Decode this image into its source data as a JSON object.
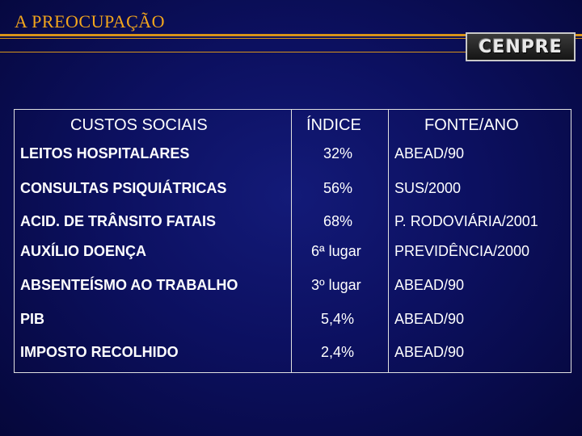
{
  "slide": {
    "title": "A PREOCUPAÇÃO",
    "logo_text": "CENPRE"
  },
  "table": {
    "headers": [
      "CUSTOS SOCIAIS",
      "ÍNDICE",
      "FONTE/ANO"
    ],
    "rows": [
      [
        "LEITOS HOSPITALARES",
        "32%",
        "ABEAD/90"
      ],
      [
        "CONSULTAS PSIQUIÁTRICAS",
        "56%",
        "SUS/2000"
      ],
      [
        "ACID. DE TRÂNSITO FATAIS",
        "68%",
        "P. RODOVIÁRIA/2001"
      ],
      [
        "AUXÍLIO DOENÇA",
        "6ª lugar",
        "PREVIDÊNCIA/2000"
      ],
      [
        "ABSENTEÍSMO AO TRABALHO",
        "3º lugar",
        "ABEAD/90"
      ],
      [
        "PIB",
        "5,4%",
        "ABEAD/90"
      ],
      [
        "IMPOSTO RECOLHIDO",
        "2,4%",
        "ABEAD/90"
      ]
    ]
  }
}
